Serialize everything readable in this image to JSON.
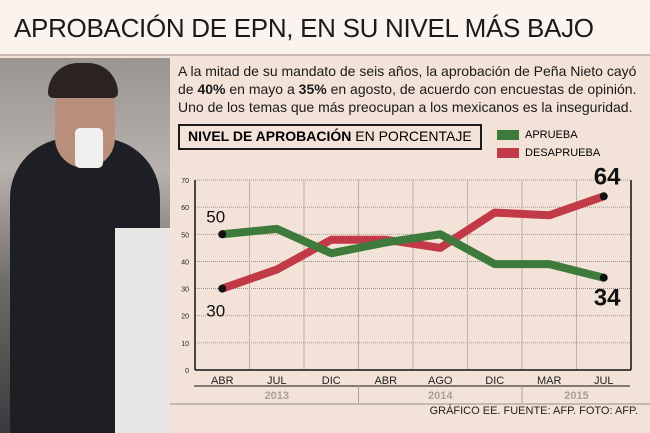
{
  "title": "APROBACIÓN DE EPN, EN SU NIVEL MÁS BAJO",
  "intro": {
    "p1": "A la mitad de su mandato de seis años, la aprobación de Peña Nieto cayó de ",
    "b1": "40%",
    "p2": " en mayo a ",
    "b2": "35%",
    "p3": " en agosto, de acuerdo con encuestas de opinión. Uno de los temas que más preocupan a los mexicanos es la inseguridad."
  },
  "chart_header": {
    "bold": "NIVEL DE APROBACIÓN",
    "rest": " EN PORCENTAJE"
  },
  "credit": "GRÁFICO EE. FUENTE: AFP. FOTO: AFP.",
  "chart_data": {
    "type": "line",
    "title": "NIVEL DE APROBACIÓN EN PORCENTAJE",
    "categories": [
      "ABR",
      "JUL",
      "DIC",
      "ABR",
      "AGO",
      "DIC",
      "MAR",
      "JUL"
    ],
    "years": [
      {
        "label": "2013",
        "span": 3
      },
      {
        "label": "2014",
        "span": 3
      },
      {
        "label": "2015",
        "span": 2
      }
    ],
    "ylim": [
      0,
      70
    ],
    "yticks": [
      0,
      10,
      20,
      30,
      40,
      50,
      60,
      70
    ],
    "series": [
      {
        "name": "APRUEBA",
        "color": "#3d7a3c",
        "values": [
          50,
          52,
          43,
          47,
          50,
          39,
          39,
          34
        ]
      },
      {
        "name": "DESAPRUEBA",
        "color": "#c23a47",
        "values": [
          30,
          37,
          48,
          48,
          45,
          58,
          57,
          64
        ]
      }
    ],
    "annotations": [
      {
        "series": "APRUEBA",
        "index": 0,
        "text": "50"
      },
      {
        "series": "DESAPRUEBA",
        "index": 0,
        "text": "30"
      },
      {
        "series": "DESAPRUEBA",
        "index": 7,
        "text": "64"
      },
      {
        "series": "APRUEBA",
        "index": 7,
        "text": "34"
      }
    ],
    "legend": "top-right"
  }
}
